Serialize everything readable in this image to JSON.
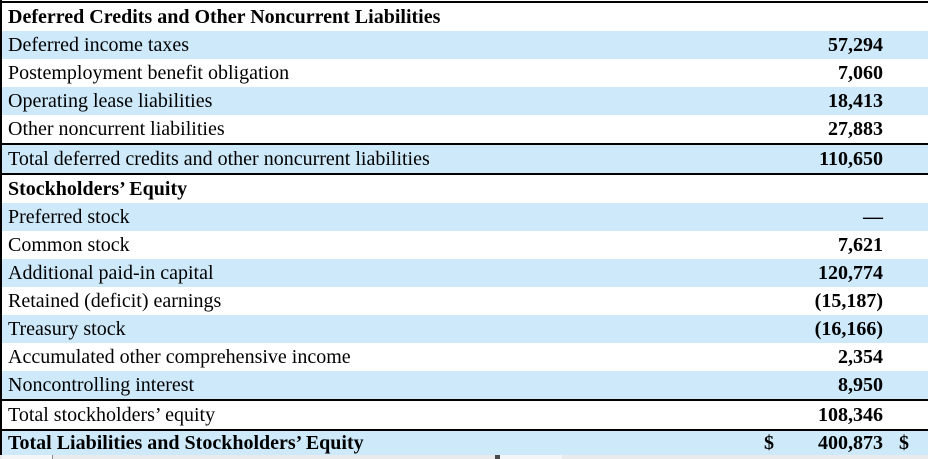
{
  "colors": {
    "row_highlight_blue": "#cde9fa",
    "border_black": "#000000",
    "bottom_strip_gray": "#e9eaec"
  },
  "rows": [
    {
      "label": "Deferred Credits and Other Noncurrent Liabilities",
      "value": ""
    },
    {
      "label": "Deferred income taxes",
      "value": "57,294"
    },
    {
      "label": "Postemployment benefit obligation",
      "value": "7,060"
    },
    {
      "label": "Operating lease liabilities",
      "value": "18,413"
    },
    {
      "label": "Other noncurrent liabilities",
      "value": "27,883"
    },
    {
      "label": "Total deferred credits and other noncurrent liabilities",
      "value": "110,650"
    },
    {
      "label": "Stockholders’ Equity",
      "value": ""
    },
    {
      "label": "Preferred stock",
      "value": "—"
    },
    {
      "label": "Common stock",
      "value": "7,621"
    },
    {
      "label": "Additional paid-in capital",
      "value": "120,774"
    },
    {
      "label": "Retained (deficit) earnings",
      "value": "(15,187)"
    },
    {
      "label": "Treasury stock",
      "value": "(16,166)"
    },
    {
      "label": "Accumulated other comprehensive income",
      "value": "2,354"
    },
    {
      "label": "Noncontrolling interest",
      "value": "8,950"
    },
    {
      "label": "Total stockholders’ equity",
      "value": "108,346"
    },
    {
      "label": "Total Liabilities and Stockholders’ Equity",
      "value": "400,873",
      "currency_left": "$",
      "currency_right": "$"
    }
  ]
}
